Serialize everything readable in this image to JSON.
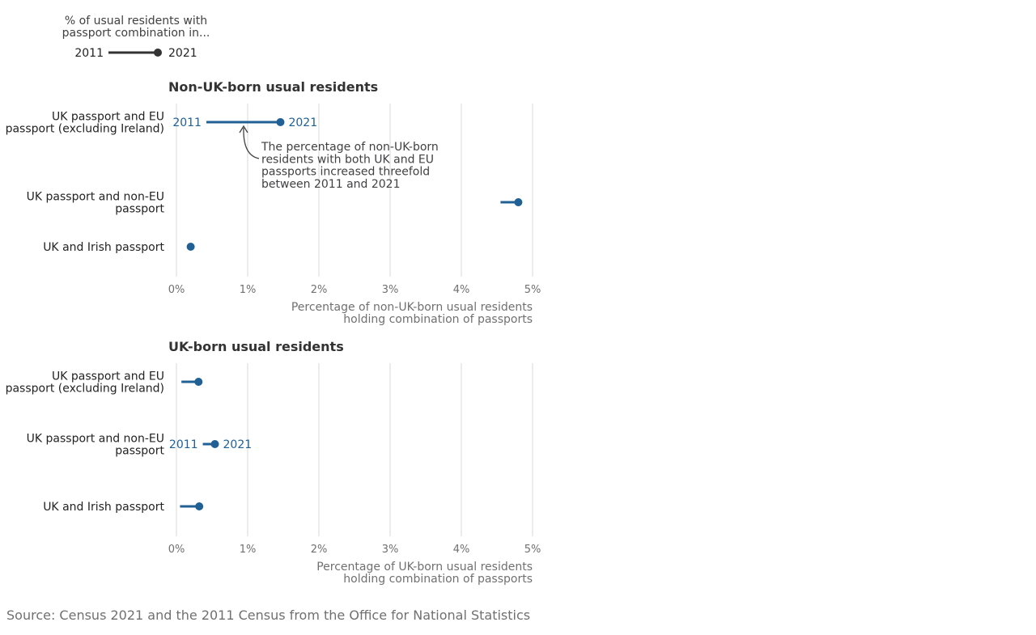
{
  "legend": {
    "title_lines": [
      "% of usual residents with",
      "passport combination in..."
    ],
    "start_label": "2011",
    "end_label": "2021"
  },
  "colors": {
    "series": "#206095",
    "grid": "#d9d9d9",
    "legend": "#333333",
    "arrow": "#414042"
  },
  "chart_data": [
    {
      "type": "dot-range",
      "title": "Non-UK-born usual residents",
      "categories": [
        [
          "UK passport and EU",
          "passport (excluding Ireland)"
        ],
        [
          "UK passport and non-EU",
          "passport"
        ],
        [
          "UK and Irish passport"
        ]
      ],
      "series": [
        {
          "name": "2011",
          "values": [
            0.42,
            4.55,
            0.15
          ]
        },
        {
          "name": "2021",
          "values": [
            1.46,
            4.8,
            0.2
          ]
        }
      ],
      "xticks": [
        "0%",
        "1%",
        "2%",
        "3%",
        "4%",
        "5%"
      ],
      "xlim": [
        0,
        5
      ],
      "grid": true,
      "xlabel_lines": [
        "Percentage of non-UK-born usual residents",
        "holding combination of passports"
      ],
      "labelled_category": 0,
      "annotation": {
        "lines": [
          "The percentage of non-UK-born",
          "residents with both UK and EU",
          "passports increased threefold",
          "between 2011 and 2021"
        ]
      }
    },
    {
      "type": "dot-range",
      "title": "UK-born usual residents",
      "categories": [
        [
          "UK passport and EU",
          "passport (excluding Ireland)"
        ],
        [
          "UK passport and non-EU",
          "passport"
        ],
        [
          "UK and Irish passport"
        ]
      ],
      "series": [
        {
          "name": "2011",
          "values": [
            0.07,
            0.37,
            0.05
          ]
        },
        {
          "name": "2021",
          "values": [
            0.31,
            0.54,
            0.32
          ]
        }
      ],
      "xticks": [
        "0%",
        "1%",
        "2%",
        "3%",
        "4%",
        "5%"
      ],
      "xlim": [
        0,
        5
      ],
      "grid": true,
      "xlabel_lines": [
        "Percentage of UK-born usual residents",
        "holding combination of passports"
      ],
      "labelled_category": 1
    }
  ],
  "source": "Source: Census 2021 and the 2011 Census from the Office for National Statistics"
}
